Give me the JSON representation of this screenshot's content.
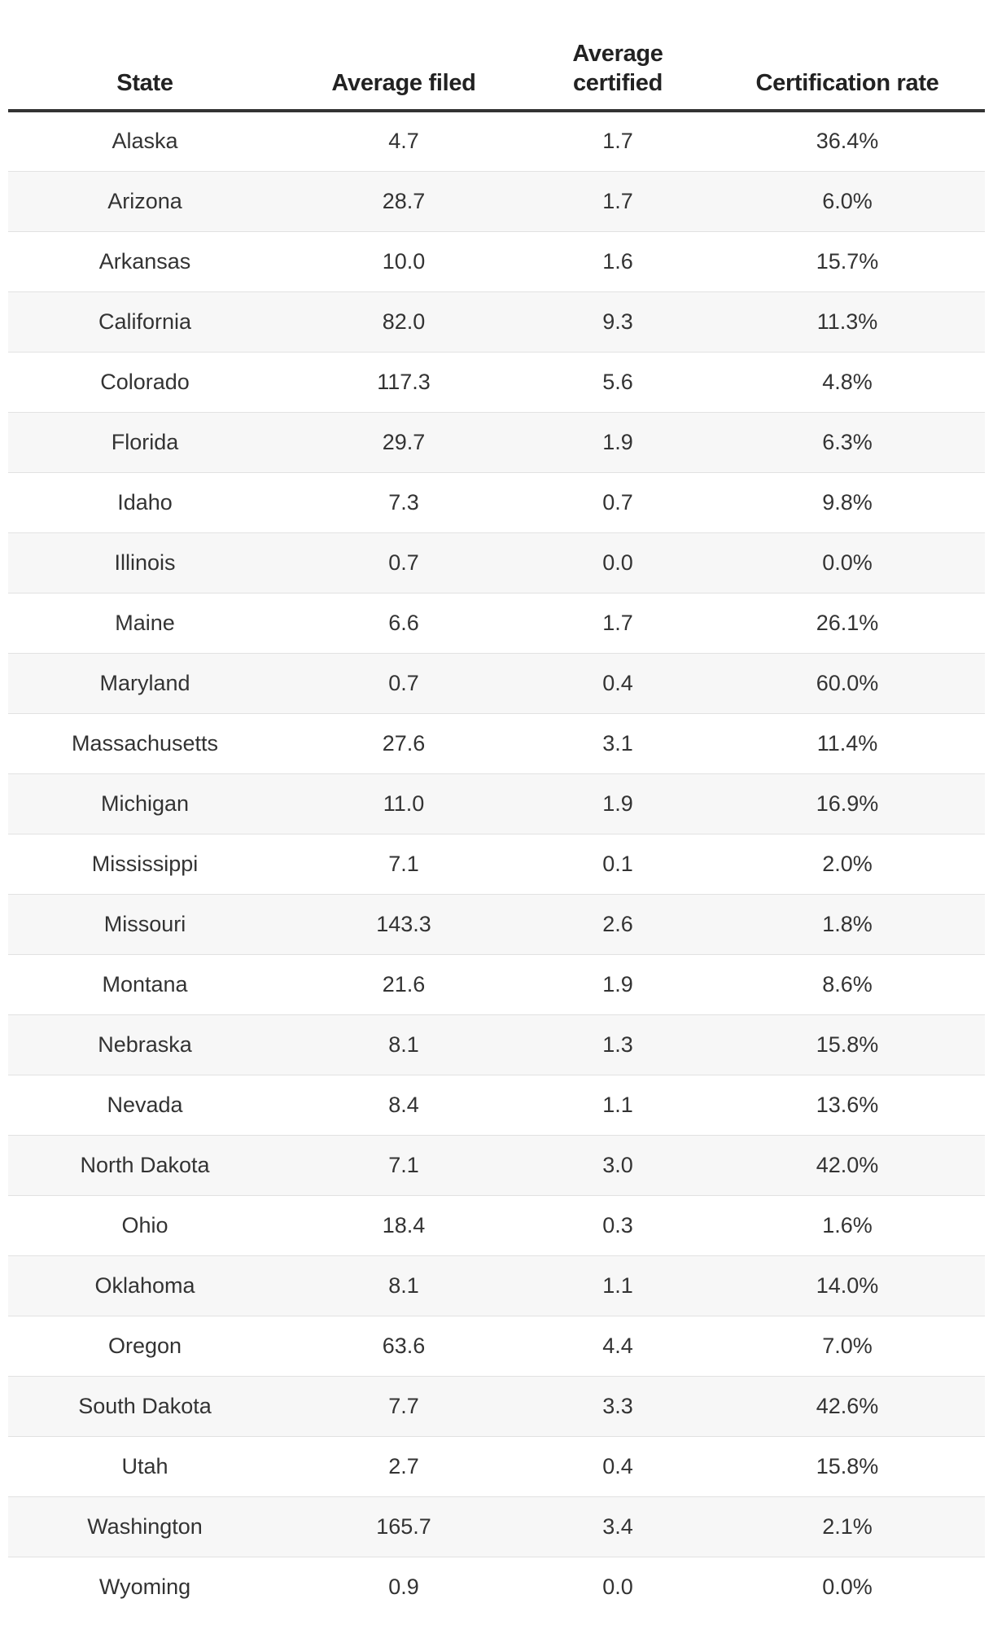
{
  "chart_data": {
    "type": "table",
    "columns": [
      "State",
      "Average filed",
      "Average certified",
      "Certification rate"
    ],
    "rows": [
      {
        "state": "Alaska",
        "filed": "4.7",
        "certified": "1.7",
        "rate": "36.4%"
      },
      {
        "state": "Arizona",
        "filed": "28.7",
        "certified": "1.7",
        "rate": "6.0%"
      },
      {
        "state": "Arkansas",
        "filed": "10.0",
        "certified": "1.6",
        "rate": "15.7%"
      },
      {
        "state": "California",
        "filed": "82.0",
        "certified": "9.3",
        "rate": "11.3%"
      },
      {
        "state": "Colorado",
        "filed": "117.3",
        "certified": "5.6",
        "rate": "4.8%"
      },
      {
        "state": "Florida",
        "filed": "29.7",
        "certified": "1.9",
        "rate": "6.3%"
      },
      {
        "state": "Idaho",
        "filed": "7.3",
        "certified": "0.7",
        "rate": "9.8%"
      },
      {
        "state": "Illinois",
        "filed": "0.7",
        "certified": "0.0",
        "rate": "0.0%"
      },
      {
        "state": "Maine",
        "filed": "6.6",
        "certified": "1.7",
        "rate": "26.1%"
      },
      {
        "state": "Maryland",
        "filed": "0.7",
        "certified": "0.4",
        "rate": "60.0%"
      },
      {
        "state": "Massachusetts",
        "filed": "27.6",
        "certified": "3.1",
        "rate": "11.4%"
      },
      {
        "state": "Michigan",
        "filed": "11.0",
        "certified": "1.9",
        "rate": "16.9%"
      },
      {
        "state": "Mississippi",
        "filed": "7.1",
        "certified": "0.1",
        "rate": "2.0%"
      },
      {
        "state": "Missouri",
        "filed": "143.3",
        "certified": "2.6",
        "rate": "1.8%"
      },
      {
        "state": "Montana",
        "filed": "21.6",
        "certified": "1.9",
        "rate": "8.6%"
      },
      {
        "state": "Nebraska",
        "filed": "8.1",
        "certified": "1.3",
        "rate": "15.8%"
      },
      {
        "state": "Nevada",
        "filed": "8.4",
        "certified": "1.1",
        "rate": "13.6%"
      },
      {
        "state": "North Dakota",
        "filed": "7.1",
        "certified": "3.0",
        "rate": "42.0%"
      },
      {
        "state": "Ohio",
        "filed": "18.4",
        "certified": "0.3",
        "rate": "1.6%"
      },
      {
        "state": "Oklahoma",
        "filed": "8.1",
        "certified": "1.1",
        "rate": "14.0%"
      },
      {
        "state": "Oregon",
        "filed": "63.6",
        "certified": "4.4",
        "rate": "7.0%"
      },
      {
        "state": "South Dakota",
        "filed": "7.7",
        "certified": "3.3",
        "rate": "42.6%"
      },
      {
        "state": "Utah",
        "filed": "2.7",
        "certified": "0.4",
        "rate": "15.8%"
      },
      {
        "state": "Washington",
        "filed": "165.7",
        "certified": "3.4",
        "rate": "2.1%"
      },
      {
        "state": "Wyoming",
        "filed": "0.9",
        "certified": "0.0",
        "rate": "0.0%"
      }
    ]
  },
  "colors": {
    "header_rule": "#333333",
    "row_stripe": "#f7f7f7",
    "row_divider": "#e2e2e2",
    "text": "#333333"
  }
}
